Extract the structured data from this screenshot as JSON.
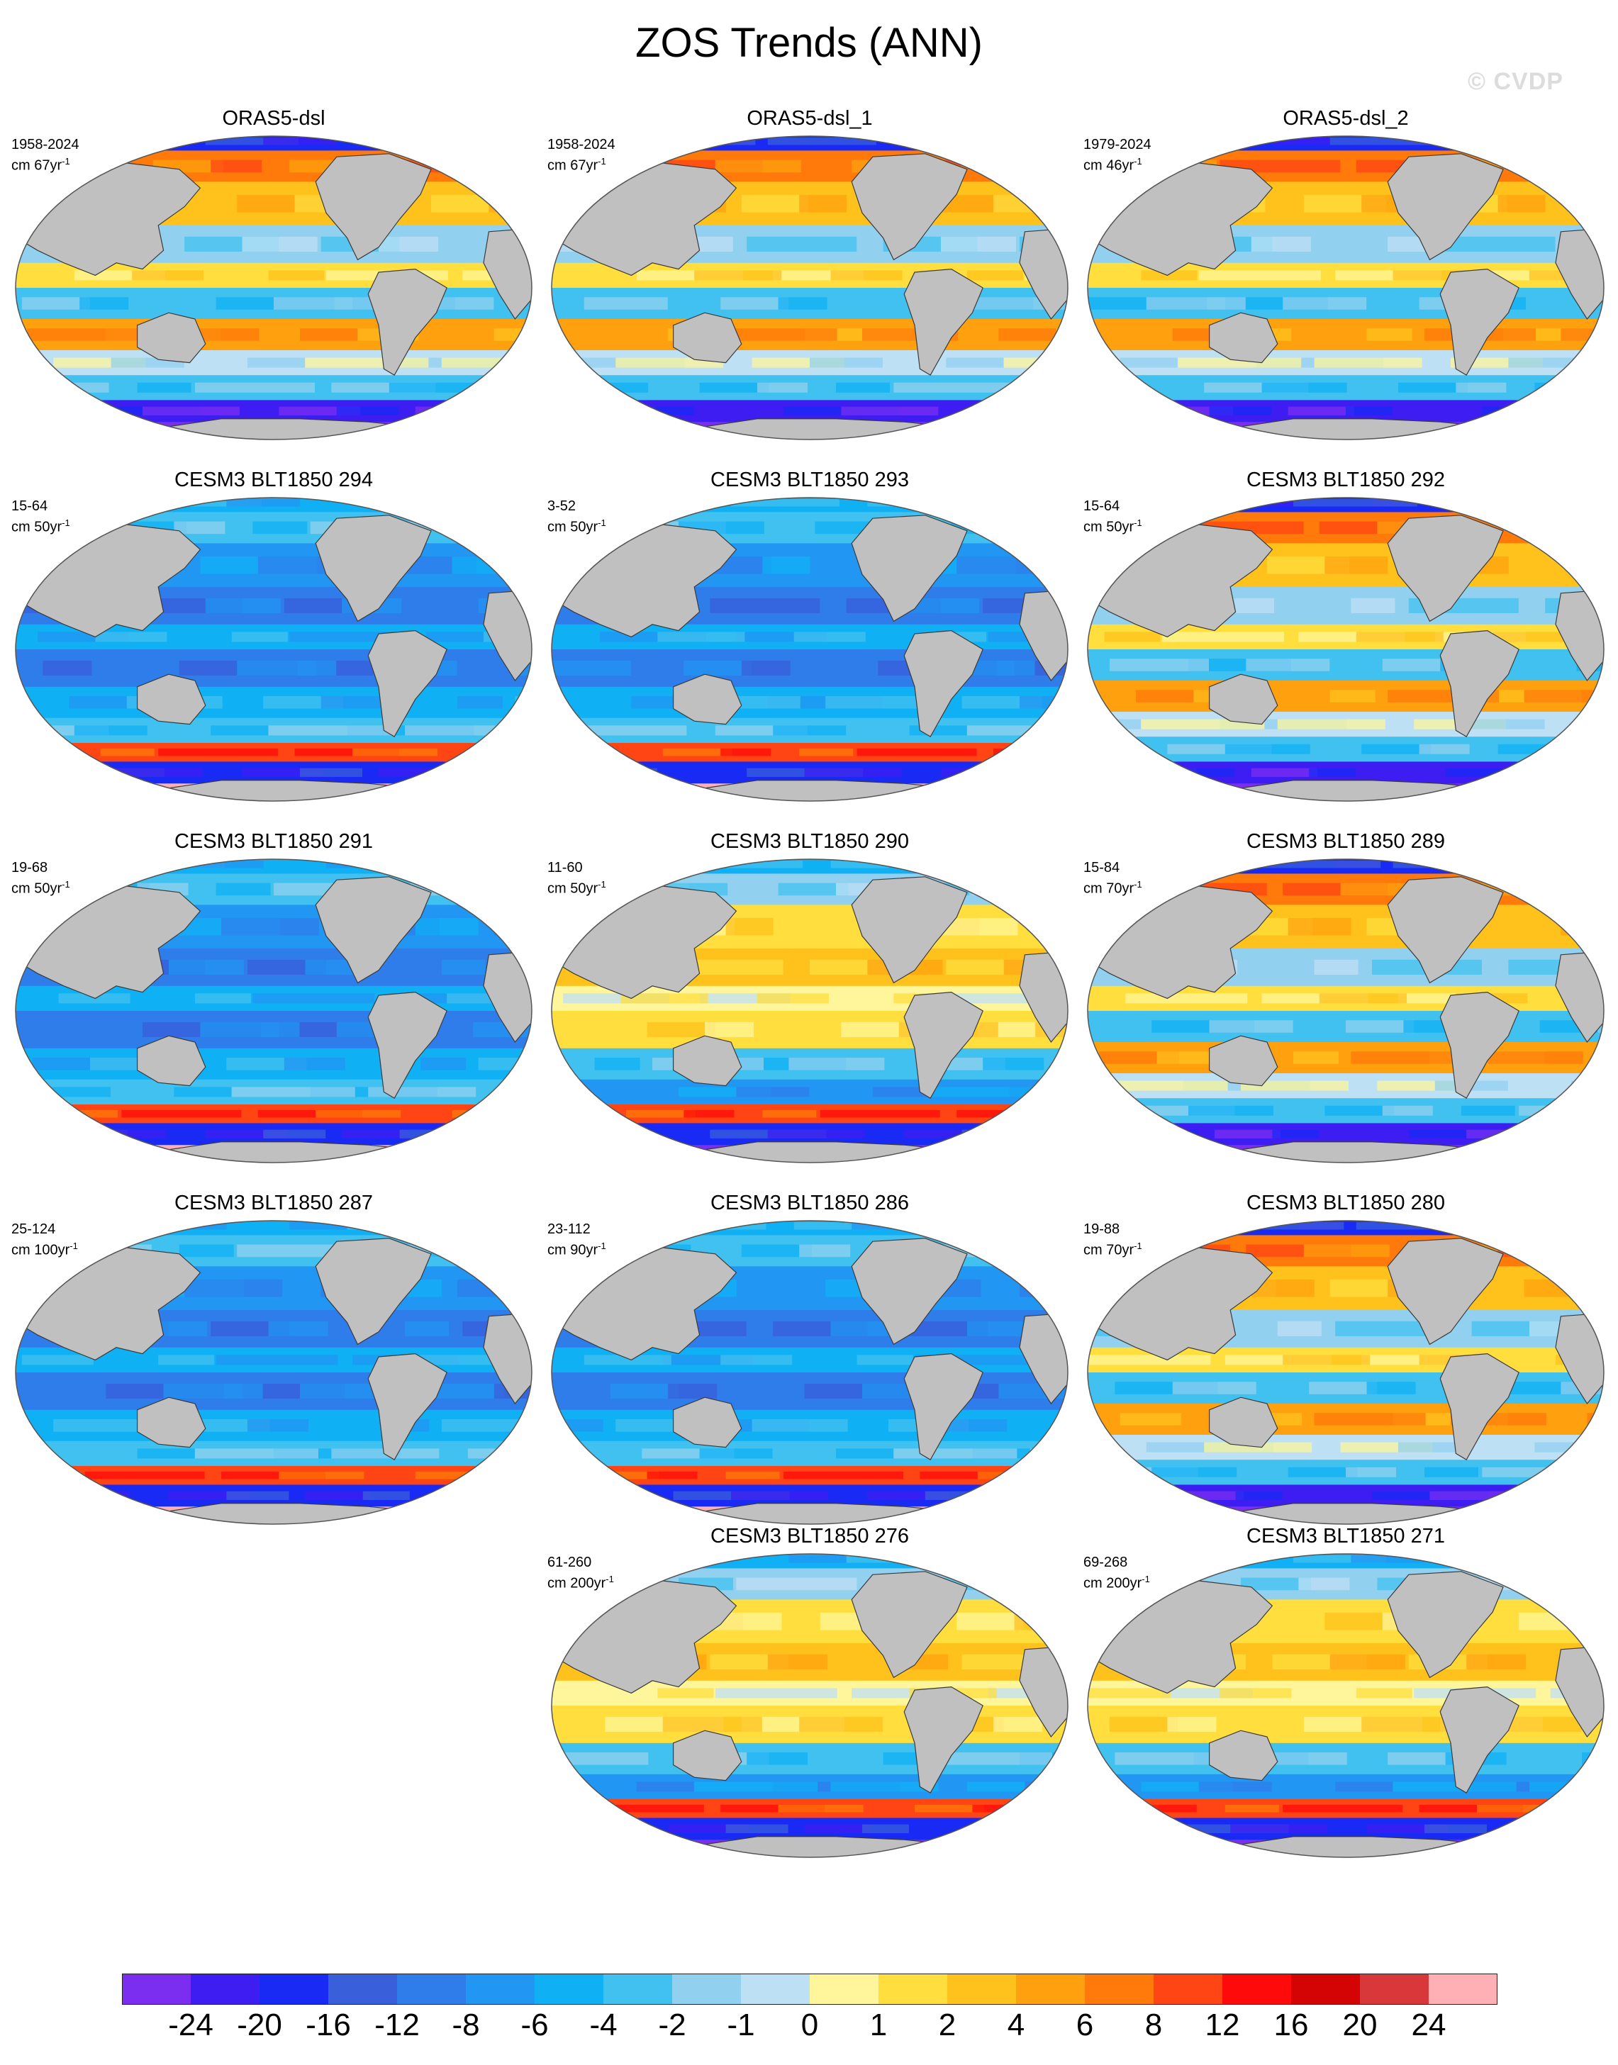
{
  "figure": {
    "title": "ZOS Trends (ANN)",
    "watermark": "© CVDP"
  },
  "panels": [
    {
      "name": "ORAS5-dsl",
      "years": "1958-2024",
      "units": "cm 67yr",
      "units_sup": "-1",
      "col": 0,
      "row": 0,
      "scheme": "warm"
    },
    {
      "name": "ORAS5-dsl_1",
      "years": "1958-2024",
      "units": "cm 67yr",
      "units_sup": "-1",
      "col": 1,
      "row": 0,
      "scheme": "warm"
    },
    {
      "name": "ORAS5-dsl_2",
      "years": "1979-2024",
      "units": "cm 46yr",
      "units_sup": "-1",
      "col": 2,
      "row": 0,
      "scheme": "warm"
    },
    {
      "name": "CESM3 BLT1850 294",
      "years": "15-64",
      "units": "cm 50yr",
      "units_sup": "-1",
      "col": 0,
      "row": 1,
      "scheme": "cool"
    },
    {
      "name": "CESM3 BLT1850 293",
      "years": "3-52",
      "units": "cm 50yr",
      "units_sup": "-1",
      "col": 1,
      "row": 1,
      "scheme": "cool"
    },
    {
      "name": "CESM3 BLT1850 292",
      "years": "15-64",
      "units": "cm 50yr",
      "units_sup": "-1",
      "col": 2,
      "row": 1,
      "scheme": "warm"
    },
    {
      "name": "CESM3 BLT1850 291",
      "years": "19-68",
      "units": "cm 50yr",
      "units_sup": "-1",
      "col": 0,
      "row": 2,
      "scheme": "cool"
    },
    {
      "name": "CESM3 BLT1850 290",
      "years": "11-60",
      "units": "cm 50yr",
      "units_sup": "-1",
      "col": 1,
      "row": 2,
      "scheme": "mixed"
    },
    {
      "name": "CESM3 BLT1850 289",
      "years": "15-84",
      "units": "cm 70yr",
      "units_sup": "-1",
      "col": 2,
      "row": 2,
      "scheme": "warm"
    },
    {
      "name": "CESM3 BLT1850 287",
      "years": "25-124",
      "units": "cm 100yr",
      "units_sup": "-1",
      "col": 0,
      "row": 3,
      "scheme": "cool"
    },
    {
      "name": "CESM3 BLT1850 286",
      "years": "23-112",
      "units": "cm 90yr",
      "units_sup": "-1",
      "col": 1,
      "row": 3,
      "scheme": "cool"
    },
    {
      "name": "CESM3 BLT1850 280",
      "years": "19-88",
      "units": "cm 70yr",
      "units_sup": "-1",
      "col": 2,
      "row": 3,
      "scheme": "warm"
    },
    {
      "name": "CESM3 BLT1850 276",
      "years": "61-260",
      "units": "cm 200yr",
      "units_sup": "-1",
      "col": 1,
      "row": 4,
      "scheme": "mixed"
    },
    {
      "name": "CESM3 BLT1850 271",
      "years": "69-268",
      "units": "cm 200yr",
      "units_sup": "-1",
      "col": 2,
      "row": 4,
      "scheme": "mixed"
    }
  ],
  "colorbar": {
    "labels": [
      "-24",
      "-20",
      "-16",
      "-12",
      "-8",
      "-6",
      "-4",
      "-2",
      "-1",
      "0",
      "1",
      "2",
      "4",
      "6",
      "8",
      "12",
      "16",
      "20",
      "24"
    ],
    "colors": [
      "#7b2df0",
      "#3e1df2",
      "#1a2af5",
      "#3a5fdb",
      "#2f7deb",
      "#2196f3",
      "#10b0f5",
      "#41c1f0",
      "#92d0ef",
      "#bde0f5",
      "#fff59a",
      "#ffde3d",
      "#ffc21c",
      "#ffa10e",
      "#ff7a0a",
      "#ff4513",
      "#ff0a0a",
      "#d40404",
      "#d9383b",
      "#ffb0b5"
    ]
  },
  "colors": {
    "land": "#c0c0c0",
    "coast": "#3a3a3a"
  }
}
